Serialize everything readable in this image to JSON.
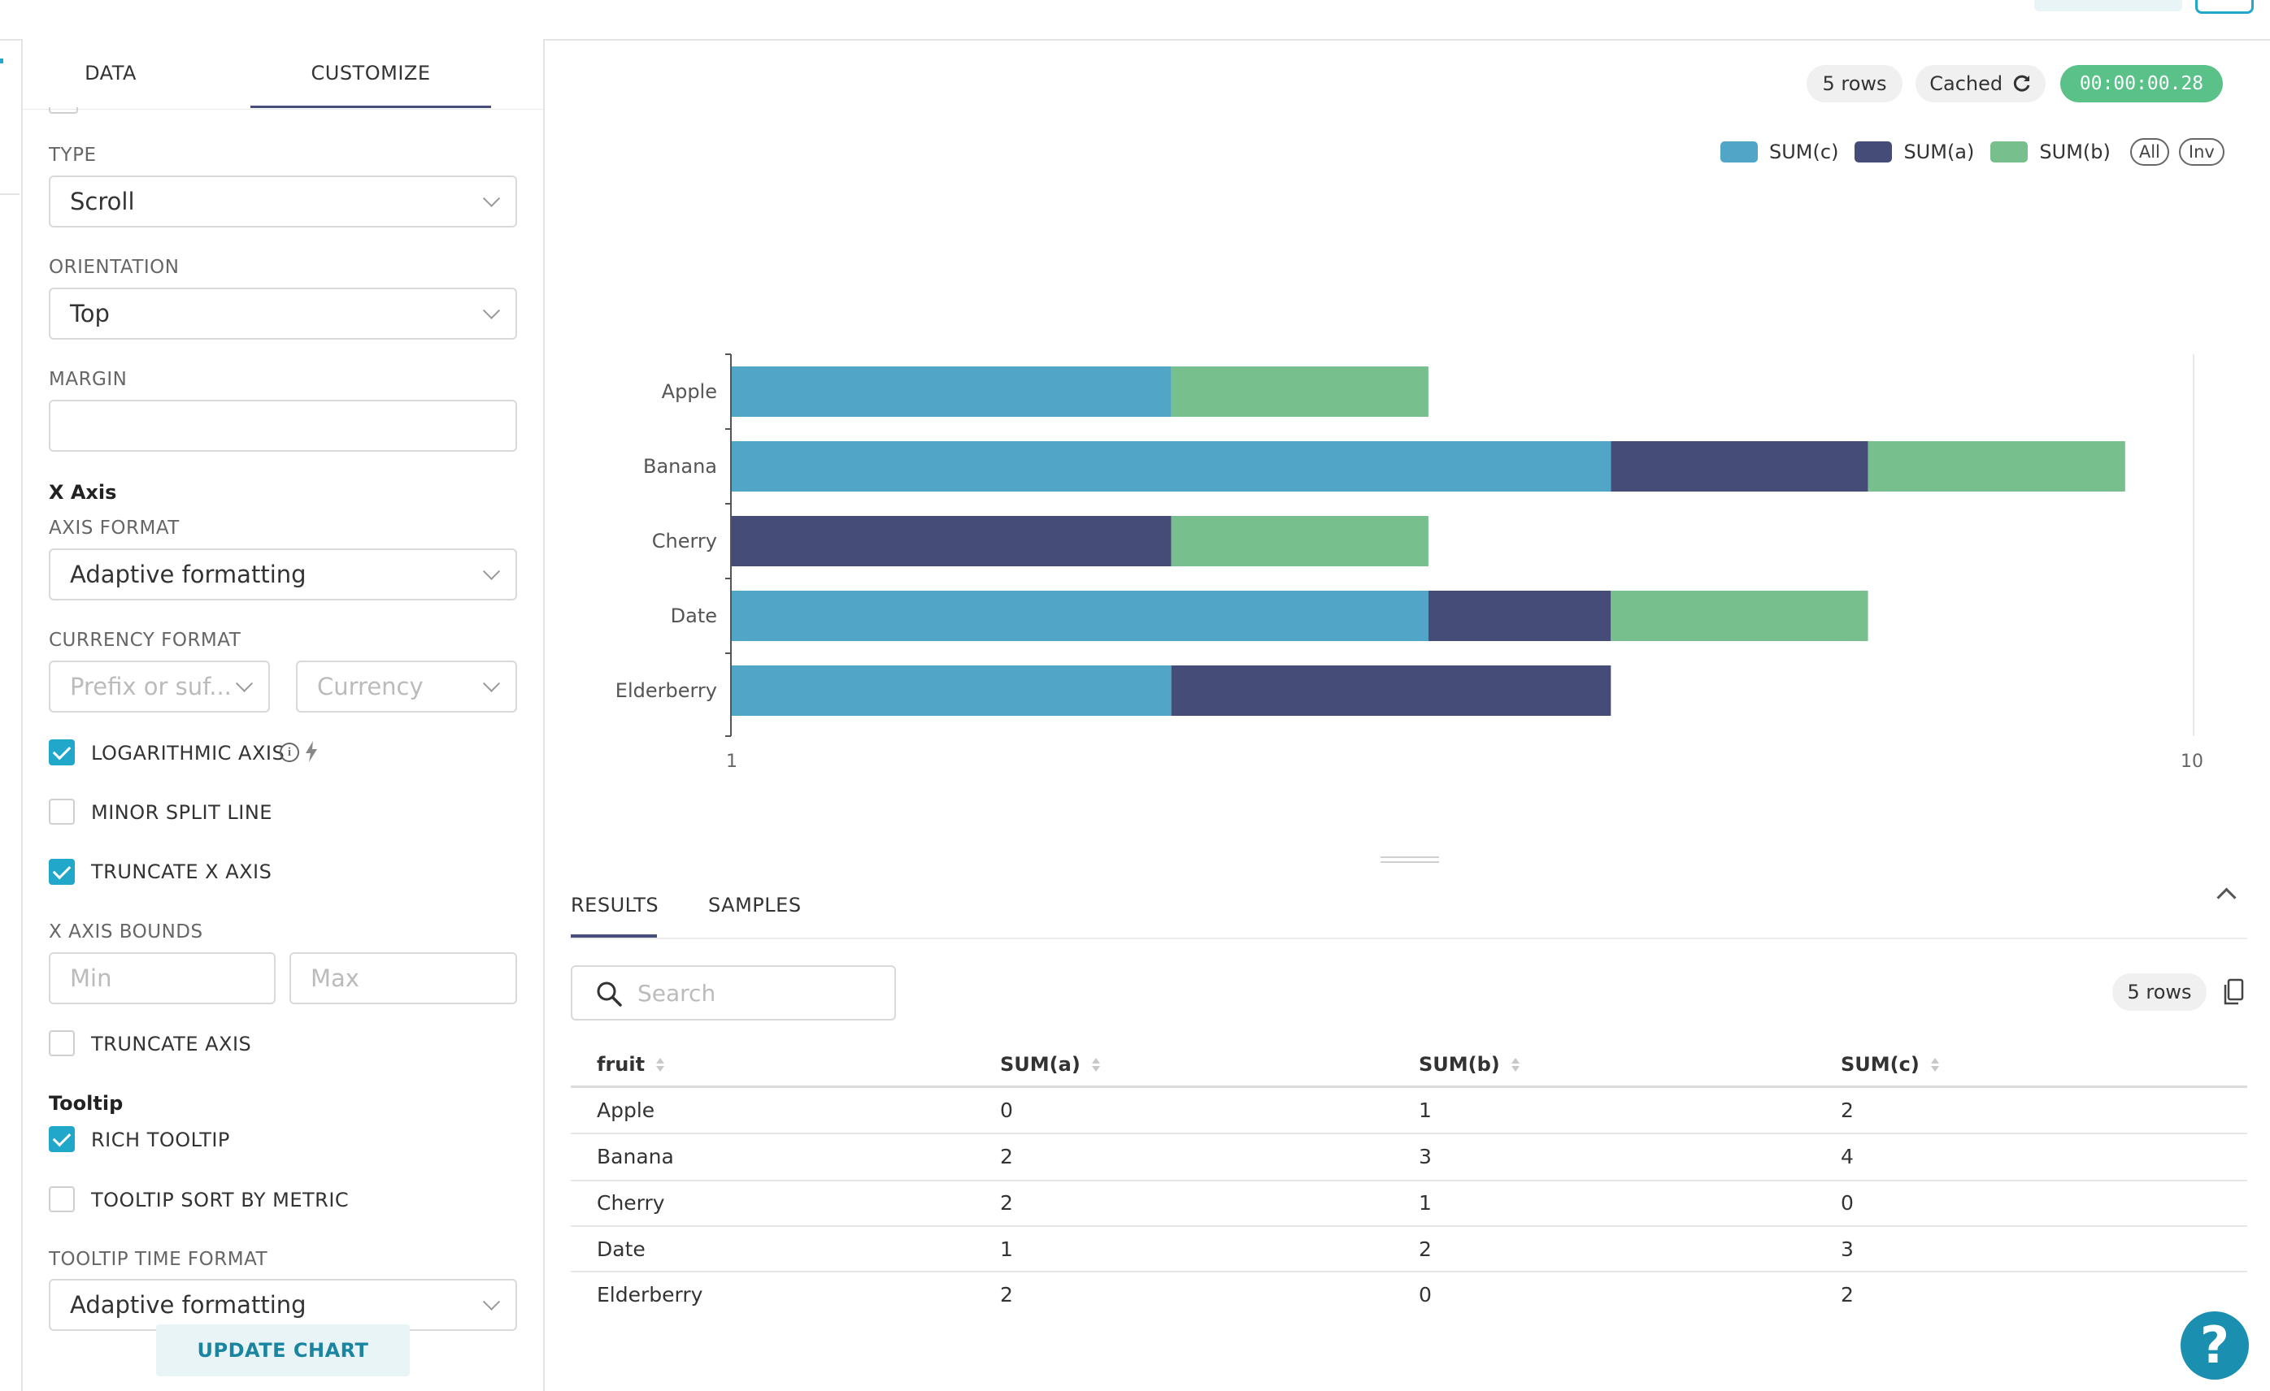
{
  "tabs": {
    "data": "DATA",
    "customize": "CUSTOMIZE"
  },
  "customize": {
    "type_label": "TYPE",
    "type_value": "Scroll",
    "orientation_label": "ORIENTATION",
    "orientation_value": "Top",
    "margin_label": "MARGIN",
    "margin_value": "",
    "x_axis_section": "X Axis",
    "axis_format_label": "AXIS FORMAT",
    "axis_format_value": "Adaptive formatting",
    "currency_format_label": "CURRENCY FORMAT",
    "currency_prefix_placeholder": "Prefix or suf...",
    "currency_placeholder": "Currency",
    "log_axis_label": "LOGARITHMIC AXIS",
    "log_axis_checked": true,
    "minor_split_label": "MINOR SPLIT LINE",
    "minor_split_checked": false,
    "truncate_x_label": "TRUNCATE X AXIS",
    "truncate_x_checked": true,
    "x_bounds_label": "X AXIS BOUNDS",
    "x_bounds_min_placeholder": "Min",
    "x_bounds_max_placeholder": "Max",
    "truncate_axis_label": "TRUNCATE AXIS",
    "truncate_axis_checked": false,
    "tooltip_section": "Tooltip",
    "rich_tooltip_label": "RICH TOOLTIP",
    "rich_tooltip_checked": true,
    "tooltip_sort_label": "TOOLTIP SORT BY METRIC",
    "tooltip_sort_checked": false,
    "tooltip_time_format_label": "TOOLTIP TIME FORMAT",
    "tooltip_time_format_value": "Adaptive formatting",
    "update_button": "UPDATE CHART"
  },
  "status": {
    "rows": "5 rows",
    "cached": "Cached",
    "timer": "00:00:00.28"
  },
  "legend": {
    "all": "All",
    "inv": "Inv"
  },
  "chart_data": {
    "type": "bar",
    "orientation": "horizontal",
    "stacked": true,
    "x_scale": "log",
    "x_ticks": [
      "1",
      "10"
    ],
    "categories": [
      "Apple",
      "Banana",
      "Cherry",
      "Date",
      "Elderberry"
    ],
    "series": [
      {
        "name": "SUM(c)",
        "color": "#51a5c6",
        "values": [
          2,
          4,
          0,
          3,
          2
        ]
      },
      {
        "name": "SUM(a)",
        "color": "#464c78",
        "values": [
          0,
          2,
          2,
          1,
          2
        ]
      },
      {
        "name": "SUM(b)",
        "color": "#77c08d",
        "values": [
          1,
          3,
          1,
          2,
          0
        ]
      }
    ],
    "legend_position": "top-right"
  },
  "results": {
    "tab_results": "RESULTS",
    "tab_samples": "SAMPLES",
    "search_placeholder": "Search",
    "rows_badge": "5 rows",
    "columns": [
      "fruit",
      "SUM(a)",
      "SUM(b)",
      "SUM(c)"
    ],
    "rows": [
      [
        "Apple",
        "0",
        "1",
        "2"
      ],
      [
        "Banana",
        "2",
        "3",
        "4"
      ],
      [
        "Cherry",
        "2",
        "1",
        "0"
      ],
      [
        "Date",
        "1",
        "2",
        "3"
      ],
      [
        "Elderberry",
        "2",
        "0",
        "2"
      ]
    ]
  },
  "help_icon": "?"
}
